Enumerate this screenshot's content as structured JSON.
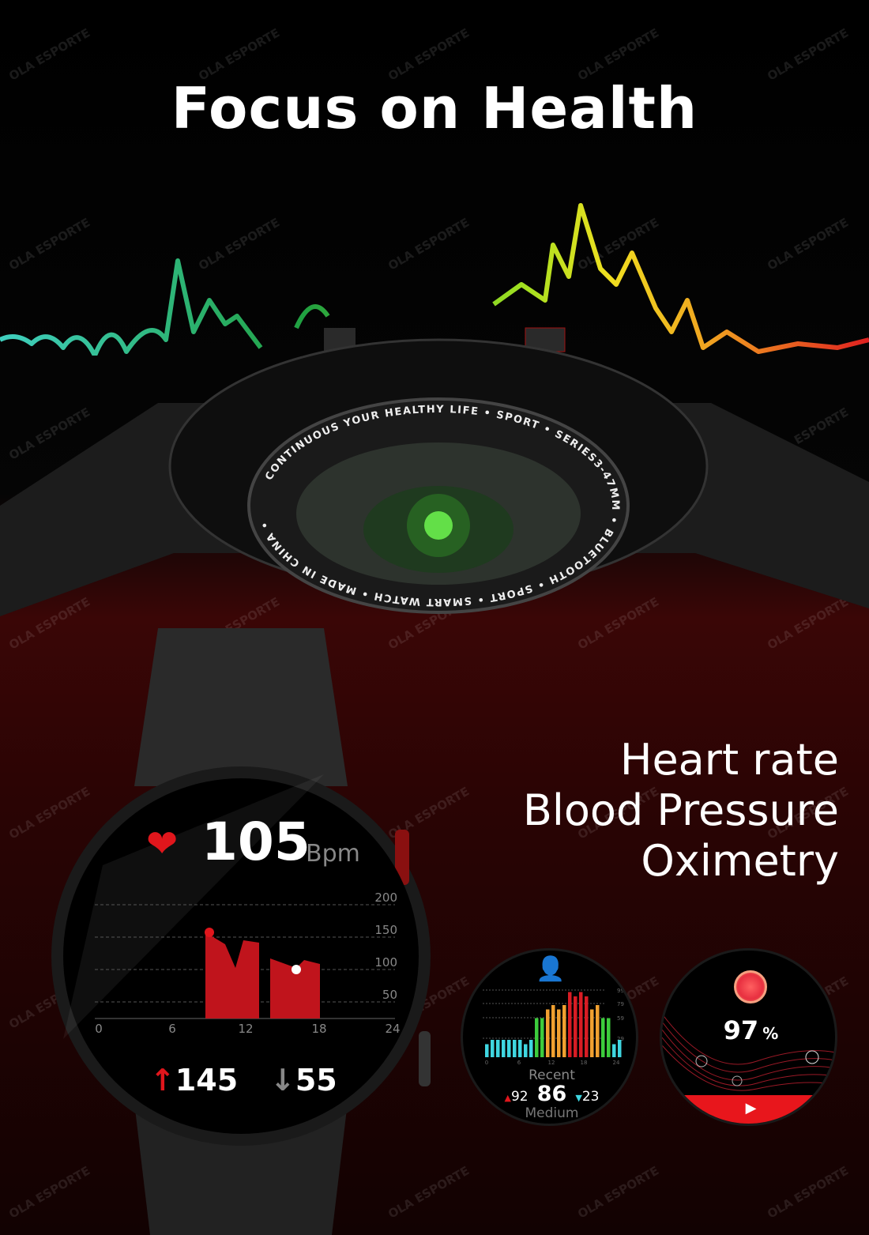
{
  "title": "Focus on Health",
  "watermark": "OLA ESPORTE",
  "features": [
    "Heart rate",
    "Blood Pressure",
    "Oximetry"
  ],
  "watch_back": {
    "ring_text": "CONTINUOUS YOUR HEALTHY LIFE • SPORT • SERIES3-47MM • BLUETOOTH • SPORT • SMART WATCH • MADE IN CHINA •"
  },
  "heart_rate_screen": {
    "value": "105",
    "unit": "Bpm",
    "y_ticks": [
      "200",
      "150",
      "100",
      "50"
    ],
    "x_ticks": [
      "0",
      "6",
      "12",
      "18",
      "24"
    ],
    "max": "145",
    "min": "55",
    "colors": {
      "accent": "#e0161c"
    }
  },
  "blood_pressure_screen": {
    "y_ticks": [
      "99",
      "79",
      "59",
      "29"
    ],
    "x_ticks": [
      "0",
      "6",
      "12",
      "18",
      "24"
    ],
    "label": "Recent",
    "high": "92",
    "value": "86",
    "low": "23",
    "level": "Medium",
    "bar_values": [
      15,
      20,
      20,
      20,
      20,
      20,
      20,
      15,
      20,
      45,
      45,
      55,
      60,
      55,
      60,
      75,
      70,
      75,
      70,
      55,
      60,
      45,
      45,
      15,
      20
    ],
    "colors": {
      "low": "#3fd6e0",
      "normal": "#3ccc3c",
      "elevated": "#f0a030",
      "high": "#d81c24"
    }
  },
  "oximetry_screen": {
    "value": "97",
    "unit": "%",
    "colors": {
      "accent": "#e8161c"
    }
  }
}
